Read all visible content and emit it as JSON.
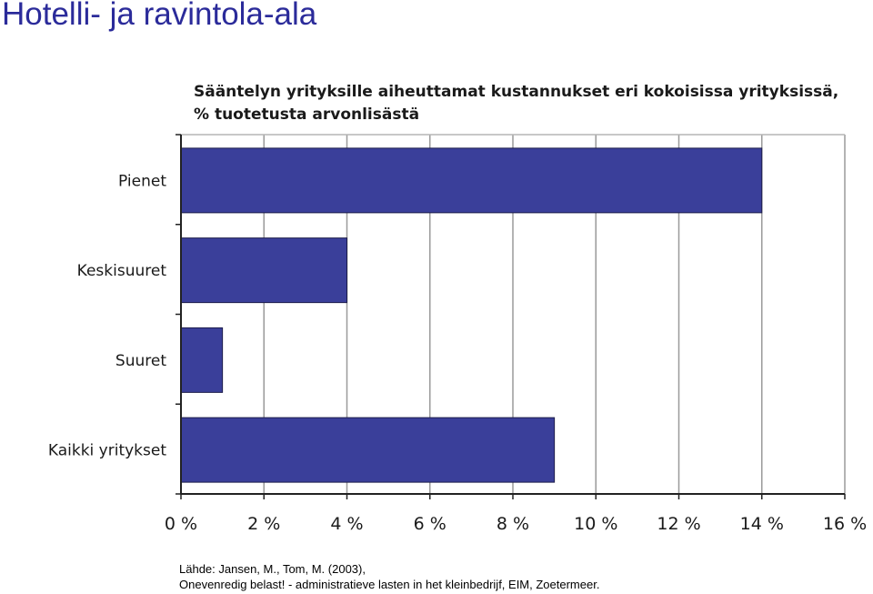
{
  "slide": {
    "title": "Hotelli- ja ravintola-ala"
  },
  "chart_data": {
    "type": "bar",
    "orientation": "horizontal",
    "title": "Sääntelyn yrityksille aiheuttamat kustannukset eri kokoisissa yrityksissä, % tuotetusta arvonlisästä",
    "categories": [
      "Pienet",
      "Keskisuuret",
      "Suuret",
      "Kaikki yritykset"
    ],
    "values": [
      14,
      4,
      1,
      9
    ],
    "xlim": [
      0,
      16
    ],
    "ticks": [
      0,
      2,
      4,
      6,
      8,
      10,
      12,
      14,
      16
    ],
    "tick_labels": [
      "0 %",
      "2 %",
      "4 %",
      "6 %",
      "8 %",
      "10 %",
      "12 %",
      "14 %",
      "16 %"
    ],
    "grid": true,
    "bar_color": "#3a3f9a",
    "grid_color": "#9a9a9a"
  },
  "source": {
    "line1": "Lähde: Jansen, M., Tom, M. (2003),",
    "line2": "Onevenredig belast! - administratieve lasten in het kleinbedrijf, EIM, Zoetermeer."
  }
}
